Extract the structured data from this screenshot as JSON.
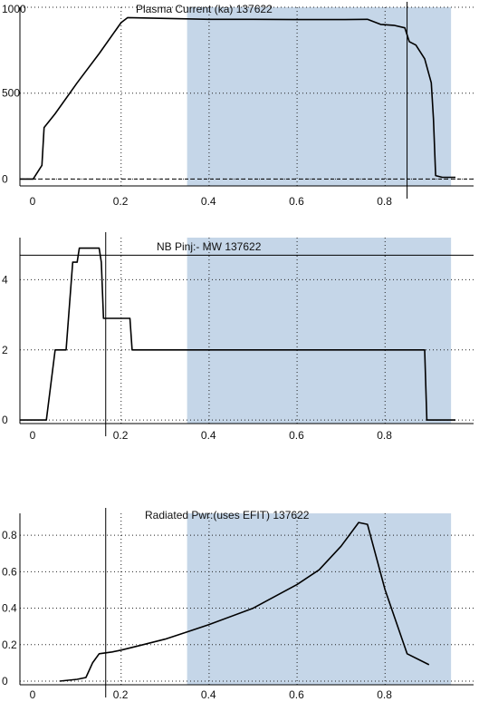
{
  "shade_color": "#c5d6e8",
  "trace_color": "#000000",
  "grid_color": "#222222",
  "chart_data": [
    {
      "type": "line",
      "title": "Plasma Current  (ka)      137622",
      "xlim": [
        -0.03,
        0.96
      ],
      "ylim": [
        -40,
        1000
      ],
      "x_ticks": [
        0,
        0.2,
        0.4,
        0.6,
        0.8
      ],
      "x_tick_labels": [
        "0",
        "0.2",
        "0.4",
        "0.6",
        "0.8"
      ],
      "y_ticks": [
        0,
        500,
        1000
      ],
      "y_tick_labels": [
        "0",
        "500",
        "1000"
      ],
      "grid": true,
      "zero_line": "dashed",
      "shaded_x": [
        0.35,
        0.95
      ],
      "markers_x": [
        0.85
      ],
      "series": [
        {
          "x": [
            -0.03,
            0.0,
            0.02,
            0.025,
            0.05,
            0.1,
            0.15,
            0.2,
            0.215,
            0.3,
            0.4,
            0.5,
            0.6,
            0.7,
            0.76,
            0.79,
            0.82,
            0.845,
            0.855,
            0.87,
            0.89,
            0.905,
            0.91,
            0.915,
            0.93,
            0.96
          ],
          "y": [
            0,
            0,
            80,
            300,
            380,
            560,
            730,
            910,
            940,
            935,
            930,
            930,
            928,
            928,
            930,
            900,
            895,
            880,
            800,
            780,
            700,
            560,
            350,
            20,
            10,
            10
          ]
        }
      ]
    },
    {
      "type": "line",
      "title": "NB Pinj:- MW      137622",
      "xlim": [
        -0.03,
        0.96
      ],
      "ylim": [
        -0.1,
        5.2
      ],
      "x_ticks": [
        0,
        0.2,
        0.4,
        0.6,
        0.8
      ],
      "x_tick_labels": [
        "0",
        "0.2",
        "0.4",
        "0.6",
        "0.8"
      ],
      "y_ticks": [
        0,
        2,
        4
      ],
      "y_tick_labels": [
        "0",
        "2",
        "4"
      ],
      "grid": true,
      "reference_line_y": 4.7,
      "shaded_x": [
        0.35,
        0.95
      ],
      "markers_x": [
        0.165
      ],
      "series": [
        {
          "x": [
            -0.03,
            0.03,
            0.05,
            0.075,
            0.09,
            0.1,
            0.105,
            0.15,
            0.155,
            0.16,
            0.2,
            0.22,
            0.225,
            0.3,
            0.5,
            0.7,
            0.89,
            0.895,
            0.96
          ],
          "y": [
            0,
            0,
            2.0,
            2.0,
            4.5,
            4.5,
            4.9,
            4.9,
            4.5,
            2.9,
            2.9,
            2.9,
            2.0,
            2.0,
            2.0,
            2.0,
            2.0,
            0,
            0
          ]
        }
      ]
    },
    {
      "type": "line",
      "title": "Radiated Pwr:(uses EFIT)      137622",
      "xlim": [
        -0.03,
        0.96
      ],
      "ylim": [
        -0.02,
        0.92
      ],
      "x_ticks": [
        0,
        0.2,
        0.4,
        0.6,
        0.8
      ],
      "x_tick_labels": [
        "0",
        "0.2",
        "0.4",
        "0.6",
        "0.8"
      ],
      "y_ticks": [
        0,
        0.2,
        0.4,
        0.6,
        0.8
      ],
      "y_tick_labels": [
        "0",
        "0.2",
        "0.4",
        "0.6",
        "0.8"
      ],
      "grid": true,
      "shaded_x": [
        0.35,
        0.95
      ],
      "markers_x": [
        0.165
      ],
      "series": [
        {
          "x": [
            0.06,
            0.1,
            0.12,
            0.135,
            0.15,
            0.18,
            0.2,
            0.25,
            0.3,
            0.35,
            0.4,
            0.5,
            0.6,
            0.65,
            0.7,
            0.74,
            0.76,
            0.8,
            0.85,
            0.9
          ],
          "y": [
            0.0,
            0.01,
            0.02,
            0.1,
            0.15,
            0.16,
            0.17,
            0.2,
            0.23,
            0.27,
            0.31,
            0.4,
            0.53,
            0.61,
            0.74,
            0.87,
            0.86,
            0.5,
            0.15,
            0.09
          ]
        }
      ]
    }
  ]
}
